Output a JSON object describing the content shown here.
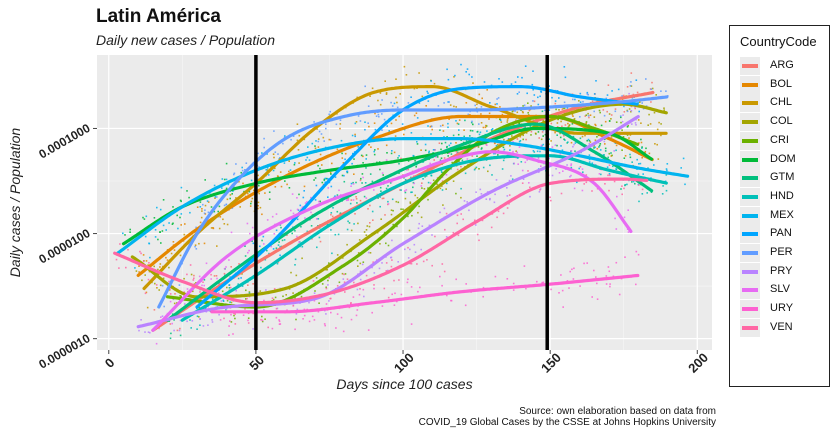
{
  "chart_data": {
    "type": "line",
    "title": "Latin América",
    "subtitle": "Daily new cases / Population",
    "xlabel": "Days since 100 cases",
    "ylabel": "Daily cases / Population",
    "x_ticks": [
      0,
      50,
      100,
      150,
      200
    ],
    "y_scale": "log10",
    "y_ticks": [
      1e-06,
      1e-05,
      0.0001
    ],
    "y_tick_labels": [
      "0.0000010",
      "0.0000100",
      "0.0001000"
    ],
    "xlim": [
      -4,
      205
    ],
    "ylim": [
      7.8e-07,
      0.0005
    ],
    "grid": true,
    "vlines": [
      50,
      149
    ],
    "legend_title": "CountryCode",
    "legend_position": "right",
    "caption": [
      "Source: own elaboration based on data from",
      "COVID_19 Global Cases by the CSSE at Johns Hopkins University"
    ],
    "series": [
      {
        "name": "ARG",
        "color": "#F8766D",
        "x": [
          15,
          40,
          70,
          100,
          130,
          160,
          185
        ],
        "y": [
          1.2e-06,
          3.5e-06,
          1.1e-05,
          3e-05,
          8e-05,
          0.00016,
          0.00022
        ]
      },
      {
        "name": "BOL",
        "color": "#E58700",
        "x": [
          10,
          30,
          60,
          90,
          120,
          150,
          170,
          185
        ],
        "y": [
          4e-06,
          1.1e-05,
          3.5e-05,
          8e-05,
          0.00013,
          0.00013,
          8e-05,
          5e-05
        ]
      },
      {
        "name": "CHL",
        "color": "#C99800",
        "x": [
          12,
          30,
          50,
          70,
          90,
          110,
          130,
          160,
          190
        ],
        "y": [
          3e-06,
          1e-05,
          3e-05,
          0.0001,
          0.00022,
          0.00025,
          0.00016,
          9e-05,
          9e-05
        ]
      },
      {
        "name": "COL",
        "color": "#A3A500",
        "x": [
          8,
          30,
          60,
          90,
          120,
          150,
          175,
          190
        ],
        "y": [
          6e-06,
          2.5e-06,
          3e-06,
          1e-05,
          4e-05,
          0.00012,
          0.00017,
          0.00014
        ]
      },
      {
        "name": "CRI",
        "color": "#6BB100",
        "x": [
          20,
          50,
          80,
          100,
          115,
          130,
          150,
          165,
          180
        ],
        "y": [
          2.5e-06,
          2e-06,
          5e-06,
          1.4e-05,
          4e-05,
          9e-05,
          0.00013,
          0.0001,
          7e-05
        ]
      },
      {
        "name": "DOM",
        "color": "#00BA38",
        "x": [
          5,
          25,
          50,
          75,
          100,
          125,
          145,
          170,
          185
        ],
        "y": [
          8e-06,
          1.8e-05,
          3e-05,
          4e-05,
          5e-05,
          7e-05,
          0.0001,
          9e-05,
          5e-05
        ]
      },
      {
        "name": "GTM",
        "color": "#00BF7D",
        "x": [
          20,
          45,
          70,
          95,
          120,
          145,
          165,
          185
        ],
        "y": [
          1.5e-06,
          5e-06,
          1.5e-05,
          3.5e-05,
          7e-05,
          0.00011,
          6e-05,
          2.5e-05
        ]
      },
      {
        "name": "HND",
        "color": "#00C0B8",
        "x": [
          25,
          50,
          75,
          100,
          125,
          150,
          170,
          190
        ],
        "y": [
          1.5e-06,
          4e-06,
          1.2e-05,
          3e-05,
          5e-05,
          5.5e-05,
          4e-05,
          3e-05
        ]
      },
      {
        "name": "MEX",
        "color": "#00B4EF",
        "x": [
          3,
          25,
          50,
          75,
          100,
          120,
          140,
          160,
          180,
          197
        ],
        "y": [
          6.5e-06,
          1.8e-05,
          4e-05,
          6.5e-05,
          8e-05,
          8e-05,
          7e-05,
          5.5e-05,
          4.2e-05,
          3.5e-05
        ]
      },
      {
        "name": "PAN",
        "color": "#00A5FF",
        "x": [
          30,
          55,
          80,
          100,
          120,
          140,
          160,
          180
        ],
        "y": [
          2e-06,
          8e-06,
          4.5e-05,
          0.00015,
          0.00024,
          0.00025,
          0.0002,
          0.00017
        ]
      },
      {
        "name": "PER",
        "color": "#619CFF",
        "x": [
          17,
          30,
          45,
          60,
          80,
          100,
          125,
          150,
          175,
          190
        ],
        "y": [
          2e-06,
          1e-05,
          3.5e-05,
          8e-05,
          0.00013,
          0.00015,
          0.00015,
          0.00016,
          0.00018,
          0.0002
        ]
      },
      {
        "name": "PRY",
        "color": "#B983FF",
        "x": [
          10,
          40,
          70,
          100,
          130,
          160,
          180
        ],
        "y": [
          1.3e-06,
          2e-06,
          2.4e-06,
          8e-06,
          2.5e-05,
          6e-05,
          0.00013
        ]
      },
      {
        "name": "SLV",
        "color": "#E76BF3",
        "x": [
          15,
          40,
          70,
          100,
          115,
          130,
          145,
          165,
          178
        ],
        "y": [
          1.2e-06,
          6e-06,
          1.8e-05,
          3.5e-05,
          5e-05,
          6e-05,
          5e-05,
          3e-05,
          1e-05
        ]
      },
      {
        "name": "URY",
        "color": "#FD61D1",
        "x": [
          35,
          60,
          90,
          120,
          150,
          180
        ],
        "y": [
          1.8e-06,
          1.8e-06,
          2.2e-06,
          2.8e-06,
          3.3e-06,
          4e-06
        ]
      },
      {
        "name": "VEN",
        "color": "#FF67A4",
        "x": [
          2,
          25,
          50,
          75,
          100,
          125,
          150,
          175,
          183
        ],
        "y": [
          6.5e-06,
          3.5e-06,
          2.2e-06,
          2.7e-06,
          5e-06,
          1.3e-05,
          3e-05,
          3.3e-05,
          3.2e-05
        ]
      }
    ]
  }
}
